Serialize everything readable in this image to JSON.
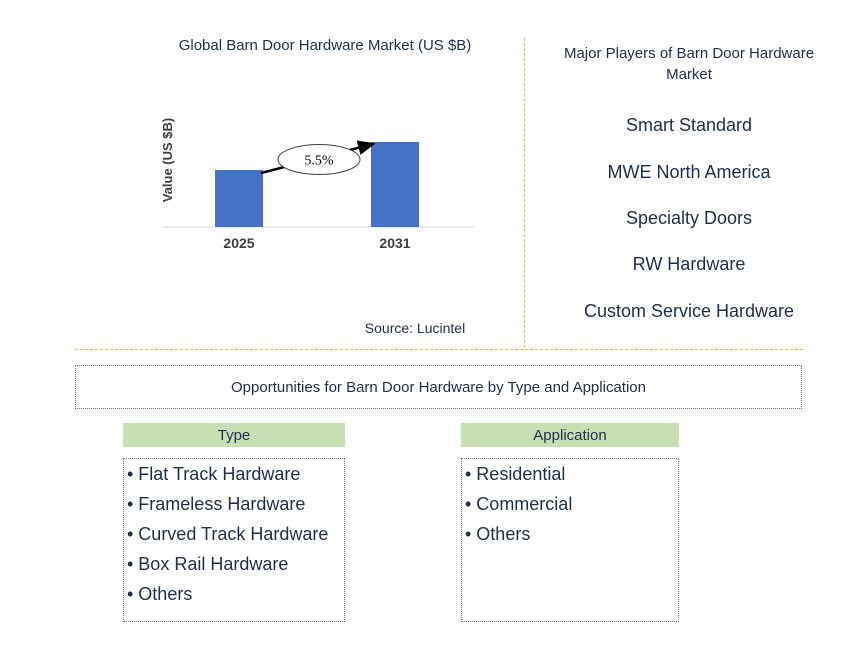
{
  "chart_data": {
    "type": "bar",
    "title": "Global Barn Door Hardware Market (US $B)",
    "ylabel": "Value (US $B)",
    "categories": [
      "2025",
      "2031"
    ],
    "values": [
      0.67,
      1.0
    ],
    "annotation": "5.5%",
    "colors": {
      "bar": "#4472c4",
      "arrow": "#000000"
    }
  },
  "source": "Source: Lucintel",
  "players": {
    "title": "Major Players of Barn Door Hardware Market",
    "items": [
      "Smart Standard",
      "MWE North America",
      "Specialty Doors",
      "RW Hardware",
      "Custom Service Hardware"
    ]
  },
  "opportunities": {
    "title": "Opportunities for Barn Door Hardware by Type and Application",
    "type": {
      "heading": "Type",
      "items": [
        "• Flat Track Hardware",
        "• Frameless Hardware",
        "• Curved Track Hardware",
        "• Box Rail Hardware",
        "• Others"
      ]
    },
    "application": {
      "heading": "Application",
      "items": [
        "• Residential",
        "• Commercial",
        "• Others"
      ]
    }
  },
  "colors": {
    "accent_green": "#c6e0b4",
    "divider": "#e8b84a",
    "text": "#1f2d4d"
  }
}
